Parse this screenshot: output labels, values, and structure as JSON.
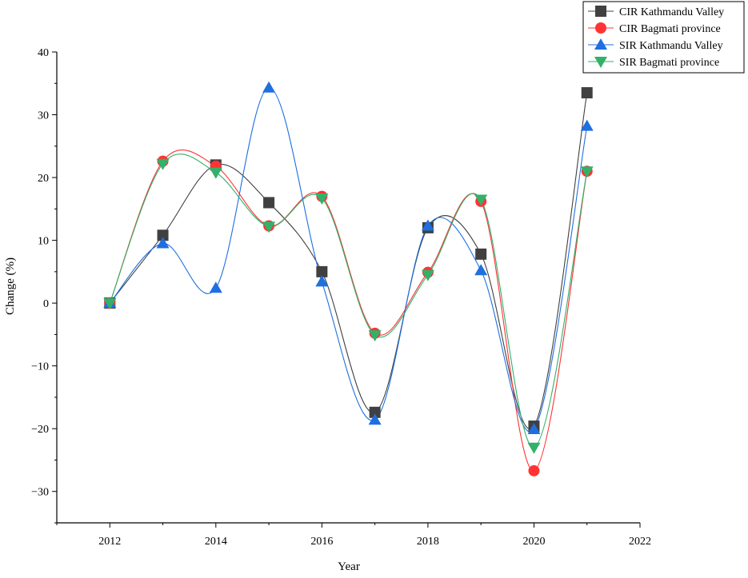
{
  "chart_data": {
    "type": "line",
    "xlabel": "Year",
    "ylabel": "Change (%)",
    "xlim": [
      2011,
      2022
    ],
    "ylim": [
      -35,
      40
    ],
    "x_ticks": [
      2012,
      2014,
      2016,
      2018,
      2020,
      2022
    ],
    "y_ticks": [
      -30,
      -20,
      -10,
      0,
      10,
      20,
      30,
      40
    ],
    "smooth": true,
    "grid": false,
    "legend_position": "top-right",
    "series": [
      {
        "name": "CIR Kathmandu Valley",
        "marker": "square",
        "color": "#404040",
        "line_color": "#404040",
        "x": [
          2012,
          2013,
          2014,
          2015,
          2016,
          2017,
          2018,
          2019,
          2020,
          2021
        ],
        "y": [
          0,
          10.8,
          22,
          16,
          5,
          -17.4,
          12,
          7.8,
          -19.6,
          33.5
        ]
      },
      {
        "name": "CIR Bagmati province",
        "marker": "circle",
        "color": "#ff3333",
        "line_color": "#ff3333",
        "x": [
          2012,
          2013,
          2014,
          2015,
          2016,
          2017,
          2018,
          2019,
          2020,
          2021
        ],
        "y": [
          0,
          22.6,
          21.8,
          12.3,
          17,
          -4.8,
          4.9,
          16.2,
          -26.7,
          21
        ]
      },
      {
        "name": "SIR Kathmandu Valley",
        "marker": "triangle-up",
        "color": "#1f6fe0",
        "line_color": "#1f6fe0",
        "x": [
          2012,
          2013,
          2014,
          2015,
          2016,
          2017,
          2018,
          2019,
          2020,
          2021
        ],
        "y": [
          0,
          9.5,
          2.4,
          34.3,
          3.4,
          -18.6,
          12.3,
          5.2,
          -20.1,
          28.2
        ]
      },
      {
        "name": "SIR Bagmati province",
        "marker": "triangle-down",
        "color": "#33b06a",
        "line_color": "#33b06a",
        "x": [
          2012,
          2013,
          2014,
          2015,
          2016,
          2017,
          2018,
          2019,
          2020,
          2021
        ],
        "y": [
          0,
          22.2,
          20.8,
          12.2,
          16.7,
          -5.1,
          4.5,
          16.5,
          -23,
          21
        ]
      }
    ]
  }
}
